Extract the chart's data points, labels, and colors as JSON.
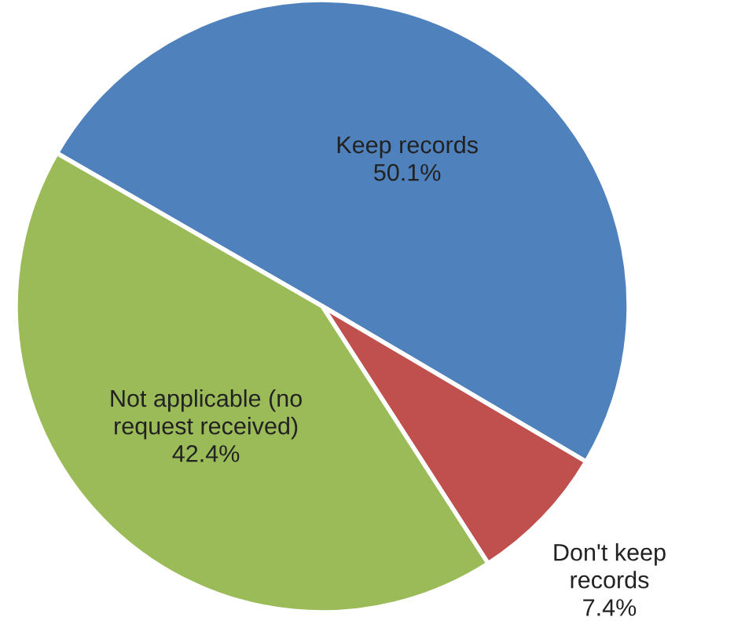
{
  "chart_data": {
    "type": "pie",
    "categories": [
      "Keep records",
      "Don't keep\nrecords",
      "Not applicable (no\nrequest received)"
    ],
    "values": [
      50.1,
      7.4,
      42.4
    ],
    "value_labels": [
      "50.1%",
      "7.4%",
      "42.4%"
    ],
    "colors": [
      "#4f81bd",
      "#c0504d",
      "#9bbb59"
    ]
  }
}
